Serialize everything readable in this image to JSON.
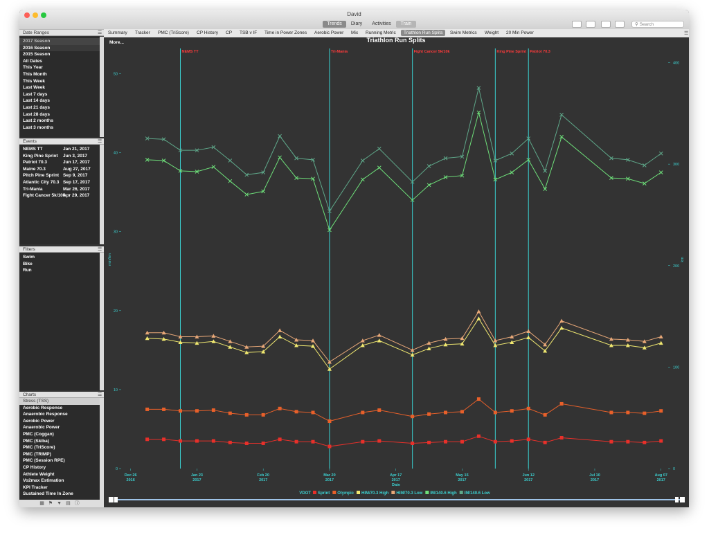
{
  "window": {
    "title": "David"
  },
  "toolbar": {
    "tabs": [
      "Trends",
      "Diary",
      "Activities",
      "Train"
    ],
    "selected": 0,
    "search": "Search"
  },
  "sidebar": {
    "date_ranges": {
      "title": "Date Ranges",
      "items": [
        "2017 Season",
        "2016 Season",
        "2015 Season",
        "All Dates",
        "This Year",
        "This Month",
        "This Week",
        "Last Week",
        "Last 7 days",
        "Last 14 days",
        "Last 21 days",
        "Last 28 days",
        "Last 2 months",
        "Last 3 months"
      ]
    },
    "events": {
      "title": "Events",
      "items": [
        {
          "name": "NEMS TT",
          "date": "Jan 21, 2017"
        },
        {
          "name": "King Pine Sprint",
          "date": "Jun 3, 2017"
        },
        {
          "name": "Patriot 70.3",
          "date": "Jun 17, 2017"
        },
        {
          "name": "Maine 70.3",
          "date": "Aug 27, 2017"
        },
        {
          "name": "Pitch Pine Sprint",
          "date": "Sep 9, 2017"
        },
        {
          "name": "Atlantic City 70.3",
          "date": "Sep 17, 2017"
        },
        {
          "name": "Tri-Mania",
          "date": "Mar 26, 2017"
        },
        {
          "name": "Fight Cancer 5k/10k",
          "date": "Apr 29, 2017"
        }
      ]
    },
    "filters": {
      "title": "Filters",
      "items": [
        "Swim",
        "Bike",
        "Run"
      ]
    },
    "charts": {
      "title": "Charts",
      "group": "Stress (TSS)",
      "items": [
        "Aerobic Response",
        "Anaerobic Response",
        "Aerobic Power",
        "Anaerobic Power",
        "PMC (Coggan)",
        "PMC (Skiba)",
        "PMC (TriScore)",
        "PMC (TRIMP)",
        "PMC (Session RPE)",
        "CP History",
        "Athlete Weight",
        "Vo2max Estimation",
        "KPI Tracker",
        "Sustained Time In Zone"
      ]
    }
  },
  "chart_tabs": {
    "items": [
      "Summary",
      "Tracker",
      "PMC (TriScore)",
      "CP History",
      "CP",
      "TSB v IF",
      "Time in Power Zones",
      "Aerobic Power",
      "Mix",
      "Running Metric",
      "Triathlon Run Splits",
      "Swim Metrics",
      "Weight",
      "20 Min Power"
    ],
    "selected": 10
  },
  "more": "More...",
  "chart_data": {
    "type": "line",
    "title": "Triathlon Run Splits",
    "xlabel": "Date",
    "ylabel": "min/km",
    "y2label": "km",
    "legend_title": "VDOT",
    "xlim": [
      "2016-12-22",
      "2017-08-10"
    ],
    "xticks": [
      {
        "value": "2016-12-26",
        "label": "Dec 26",
        "year": "2016"
      },
      {
        "value": "2017-01-23",
        "label": "Jan 23",
        "year": "2017"
      },
      {
        "value": "2017-02-20",
        "label": "Feb 20",
        "year": "2017"
      },
      {
        "value": "2017-03-20",
        "label": "Mar 20",
        "year": "2017"
      },
      {
        "value": "2017-04-17",
        "label": "Apr 17",
        "year": "2017"
      },
      {
        "value": "2017-05-15",
        "label": "May 15",
        "year": "2017"
      },
      {
        "value": "2017-06-12",
        "label": "Jun 12",
        "year": "2017"
      },
      {
        "value": "2017-07-10",
        "label": "Jul 10",
        "year": "2017"
      },
      {
        "value": "2017-08-07",
        "label": "Aug 07",
        "year": "2017"
      }
    ],
    "ylim": [
      0,
      53.2
    ],
    "yticks": [
      0,
      10,
      20,
      30,
      40,
      50
    ],
    "y2lim": [
      0,
      414
    ],
    "y2ticks": [
      0,
      100,
      200,
      300,
      400
    ],
    "events": [
      {
        "label": "NEMS TT",
        "x": "2017-01-16"
      },
      {
        "label": "Tri-Mania",
        "x": "2017-03-20"
      },
      {
        "label": "Fight Cancer 5k/10k",
        "x": "2017-04-24"
      },
      {
        "label": "King Pine Sprint",
        "x": "2017-05-29"
      },
      {
        "label": "Patriot 70.3",
        "x": "2017-06-12"
      }
    ],
    "x": [
      "2017-01-02",
      "2017-01-09",
      "2017-01-16",
      "2017-01-23",
      "2017-01-30",
      "2017-02-06",
      "2017-02-13",
      "2017-02-20",
      "2017-02-27",
      "2017-03-06",
      "2017-03-13",
      "2017-03-20",
      "2017-04-03",
      "2017-04-10",
      "2017-04-24",
      "2017-05-01",
      "2017-05-08",
      "2017-05-15",
      "2017-05-22",
      "2017-05-29",
      "2017-06-05",
      "2017-06-12",
      "2017-06-19",
      "2017-06-26",
      "2017-07-17",
      "2017-07-24",
      "2017-07-31",
      "2017-08-07"
    ],
    "series": [
      {
        "name": "Sprint",
        "color": "#e8302a",
        "marker": "square",
        "values": [
          3.7,
          3.7,
          3.5,
          3.5,
          3.5,
          3.3,
          3.2,
          3.2,
          3.7,
          3.4,
          3.4,
          2.8,
          3.4,
          3.5,
          3.2,
          3.3,
          3.4,
          3.4,
          4.1,
          3.4,
          3.5,
          3.7,
          3.3,
          3.9,
          3.4,
          3.4,
          3.3,
          3.5
        ]
      },
      {
        "name": "Olympic",
        "color": "#e8602a",
        "marker": "square",
        "values": [
          7.5,
          7.5,
          7.3,
          7.3,
          7.4,
          7.0,
          6.8,
          6.8,
          7.6,
          7.2,
          7.1,
          6.0,
          7.1,
          7.4,
          6.6,
          6.9,
          7.1,
          7.2,
          8.8,
          7.1,
          7.3,
          7.6,
          6.8,
          8.2,
          7.1,
          7.1,
          7.0,
          7.3
        ]
      },
      {
        "name": "HIM/70.3 High",
        "color": "#f0e870",
        "marker": "triangle",
        "values": [
          16.5,
          16.4,
          16.0,
          15.9,
          16.1,
          15.4,
          14.7,
          14.8,
          16.7,
          15.6,
          15.5,
          12.6,
          15.6,
          16.2,
          14.4,
          15.2,
          15.7,
          15.8,
          19.0,
          15.6,
          16.0,
          16.6,
          14.9,
          17.8,
          15.6,
          15.6,
          15.3,
          15.9
        ]
      },
      {
        "name": "HIM/70.3 Low",
        "color": "#e8a878",
        "marker": "triangle",
        "values": [
          17.2,
          17.2,
          16.7,
          16.7,
          16.8,
          16.1,
          15.4,
          15.5,
          17.5,
          16.3,
          16.2,
          13.5,
          16.2,
          16.9,
          15.0,
          15.9,
          16.4,
          16.5,
          19.9,
          16.2,
          16.7,
          17.4,
          15.7,
          18.7,
          16.4,
          16.3,
          16.1,
          16.7
        ]
      },
      {
        "name": "IM/140.6 High",
        "color": "#6ee07a",
        "marker": "cross",
        "values": [
          39.1,
          39.0,
          37.7,
          37.6,
          38.2,
          36.4,
          34.7,
          35.1,
          39.4,
          36.8,
          36.7,
          30.2,
          36.6,
          38.1,
          34.0,
          35.9,
          36.9,
          37.1,
          45.1,
          36.6,
          37.5,
          39.1,
          35.4,
          42.0,
          36.8,
          36.7,
          36.1,
          37.5
        ]
      },
      {
        "name": "IM/140.6 Low",
        "color": "#5fa88a",
        "marker": "cross",
        "values": [
          41.8,
          41.7,
          40.3,
          40.3,
          40.7,
          39.0,
          37.2,
          37.5,
          42.1,
          39.3,
          39.1,
          32.6,
          39.0,
          40.5,
          36.3,
          38.3,
          39.3,
          39.5,
          48.2,
          39.0,
          39.9,
          41.8,
          37.7,
          44.8,
          39.3,
          39.1,
          38.4,
          39.9
        ]
      }
    ]
  }
}
